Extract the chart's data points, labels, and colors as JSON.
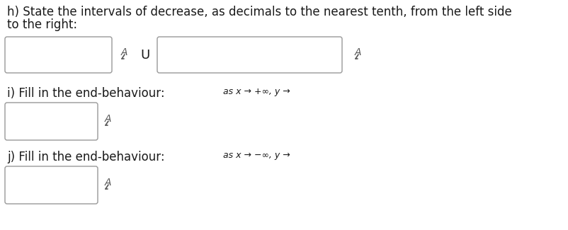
{
  "bg_color": "#ffffff",
  "text_color": "#1a1a1a",
  "dark_red": "#8B0000",
  "h_label_line1": "h) State the intervals of decrease, as decimals to the nearest tenth, from the left side",
  "h_label_line2": "to the right:",
  "i_label": "i) Fill in the end-behaviour:",
  "i_math": "as x → +∞, y →",
  "j_label": "j) Fill in the end-behaviour:",
  "j_math": "as x → −∞, y →",
  "figsize": [
    8.02,
    3.25
  ],
  "dpi": 100
}
